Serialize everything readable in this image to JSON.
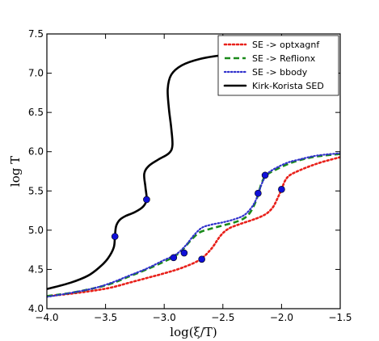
{
  "chart_data": {
    "type": "line",
    "xlabel": "log(ξ/T)",
    "ylabel": "log T",
    "xlim": [
      -4.0,
      -1.5
    ],
    "ylim": [
      4.0,
      7.5
    ],
    "xticks": [
      -4.0,
      -3.5,
      -3.0,
      -2.5,
      -2.0,
      -1.5
    ],
    "xtick_labels": [
      "−4.0",
      "−3.5",
      "−3.0",
      "−2.5",
      "−2.0",
      "−1.5"
    ],
    "yticks": [
      4.0,
      4.5,
      5.0,
      5.5,
      6.0,
      6.5,
      7.0,
      7.5
    ],
    "ytick_labels": [
      "4.0",
      "4.5",
      "5.0",
      "5.5",
      "6.0",
      "6.5",
      "7.0",
      "7.5"
    ],
    "grid": false,
    "legend_position": "top-right",
    "series": [
      {
        "name": "SE -> optxagnf",
        "color": "#e8201a",
        "dash": "dashdot",
        "points": [
          [
            -4.0,
            4.16
          ],
          [
            -3.8,
            4.19
          ],
          [
            -3.6,
            4.23
          ],
          [
            -3.45,
            4.27
          ],
          [
            -3.3,
            4.33
          ],
          [
            -3.15,
            4.39
          ],
          [
            -3.0,
            4.45
          ],
          [
            -2.85,
            4.52
          ],
          [
            -2.7,
            4.62
          ],
          [
            -2.6,
            4.76
          ],
          [
            -2.52,
            4.93
          ],
          [
            -2.45,
            5.02
          ],
          [
            -2.35,
            5.08
          ],
          [
            -2.25,
            5.13
          ],
          [
            -2.18,
            5.17
          ],
          [
            -2.12,
            5.22
          ],
          [
            -2.07,
            5.3
          ],
          [
            -2.03,
            5.42
          ],
          [
            -2.0,
            5.52
          ],
          [
            -1.97,
            5.63
          ],
          [
            -1.93,
            5.7
          ],
          [
            -1.85,
            5.76
          ],
          [
            -1.75,
            5.82
          ],
          [
            -1.65,
            5.87
          ],
          [
            -1.5,
            5.93
          ]
        ]
      },
      {
        "name": "SE -> Reflionx",
        "color": "#1a8a1a",
        "dash": "dashed",
        "points": [
          [
            -4.0,
            4.16
          ],
          [
            -3.8,
            4.2
          ],
          [
            -3.6,
            4.26
          ],
          [
            -3.45,
            4.32
          ],
          [
            -3.3,
            4.41
          ],
          [
            -3.15,
            4.5
          ],
          [
            -3.0,
            4.6
          ],
          [
            -2.92,
            4.66
          ],
          [
            -2.85,
            4.74
          ],
          [
            -2.78,
            4.86
          ],
          [
            -2.7,
            4.97
          ],
          [
            -2.6,
            5.02
          ],
          [
            -2.5,
            5.06
          ],
          [
            -2.4,
            5.1
          ],
          [
            -2.32,
            5.15
          ],
          [
            -2.27,
            5.22
          ],
          [
            -2.23,
            5.33
          ],
          [
            -2.2,
            5.45
          ],
          [
            -2.17,
            5.6
          ],
          [
            -2.13,
            5.7
          ],
          [
            -2.05,
            5.77
          ],
          [
            -1.95,
            5.84
          ],
          [
            -1.85,
            5.89
          ],
          [
            -1.7,
            5.94
          ],
          [
            -1.5,
            5.97
          ]
        ]
      },
      {
        "name": "SE -> bbody",
        "color": "#3030cc",
        "dash": "dotted",
        "points": [
          [
            -4.0,
            4.15
          ],
          [
            -3.8,
            4.2
          ],
          [
            -3.6,
            4.26
          ],
          [
            -3.45,
            4.33
          ],
          [
            -3.3,
            4.42
          ],
          [
            -3.15,
            4.51
          ],
          [
            -3.0,
            4.62
          ],
          [
            -2.9,
            4.69
          ],
          [
            -2.82,
            4.8
          ],
          [
            -2.75,
            4.93
          ],
          [
            -2.68,
            5.03
          ],
          [
            -2.6,
            5.07
          ],
          [
            -2.5,
            5.1
          ],
          [
            -2.4,
            5.14
          ],
          [
            -2.32,
            5.19
          ],
          [
            -2.26,
            5.28
          ],
          [
            -2.22,
            5.38
          ],
          [
            -2.19,
            5.5
          ],
          [
            -2.16,
            5.62
          ],
          [
            -2.12,
            5.72
          ],
          [
            -2.05,
            5.79
          ],
          [
            -1.95,
            5.86
          ],
          [
            -1.85,
            5.9
          ],
          [
            -1.7,
            5.95
          ],
          [
            -1.5,
            5.98
          ]
        ]
      },
      {
        "name": "Kirk-Korista SED",
        "color": "#000000",
        "dash": "solid",
        "points": [
          [
            -4.0,
            4.25
          ],
          [
            -3.8,
            4.33
          ],
          [
            -3.65,
            4.42
          ],
          [
            -3.55,
            4.53
          ],
          [
            -3.48,
            4.64
          ],
          [
            -3.43,
            4.78
          ],
          [
            -3.42,
            4.92
          ],
          [
            -3.41,
            5.05
          ],
          [
            -3.38,
            5.13
          ],
          [
            -3.33,
            5.18
          ],
          [
            -3.25,
            5.23
          ],
          [
            -3.18,
            5.3
          ],
          [
            -3.15,
            5.39
          ],
          [
            -3.16,
            5.55
          ],
          [
            -3.17,
            5.72
          ],
          [
            -3.13,
            5.82
          ],
          [
            -3.05,
            5.9
          ],
          [
            -2.96,
            5.98
          ],
          [
            -2.93,
            6.08
          ],
          [
            -2.94,
            6.3
          ],
          [
            -2.96,
            6.55
          ],
          [
            -2.97,
            6.8
          ],
          [
            -2.94,
            6.98
          ],
          [
            -2.85,
            7.1
          ],
          [
            -2.7,
            7.18
          ],
          [
            -2.5,
            7.23
          ],
          [
            -2.3,
            7.25
          ],
          [
            -2.19,
            7.26
          ]
        ]
      }
    ],
    "markers": {
      "color": "#1010d8",
      "points": [
        [
          -3.42,
          4.92
        ],
        [
          -3.15,
          5.39
        ],
        [
          -2.92,
          4.65
        ],
        [
          -2.83,
          4.71
        ],
        [
          -2.68,
          4.63
        ],
        [
          -2.2,
          5.47
        ],
        [
          -2.14,
          5.7
        ],
        [
          -2.0,
          5.52
        ]
      ]
    }
  }
}
